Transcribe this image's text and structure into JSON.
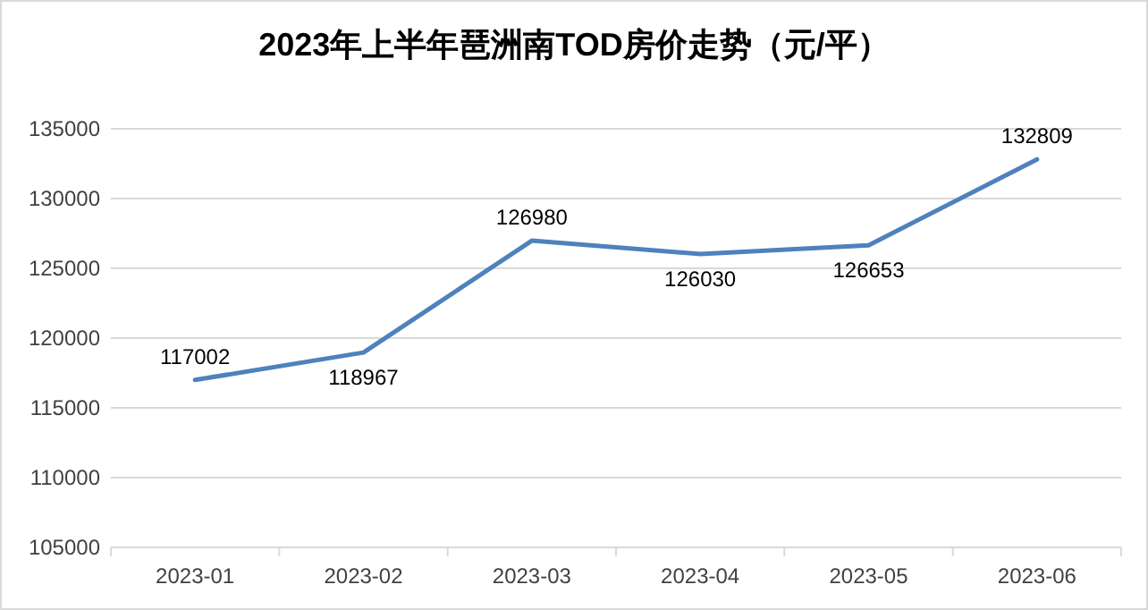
{
  "chart_data": {
    "type": "line",
    "title": "2023年上半年琶洲南TOD房价走势（元/平）",
    "categories": [
      "2023-01",
      "2023-02",
      "2023-03",
      "2023-04",
      "2023-05",
      "2023-06"
    ],
    "series": [
      {
        "color": "#4f81bd",
        "values": [
          117002,
          118967,
          126980,
          126030,
          126653,
          132809
        ]
      }
    ],
    "ylim": [
      105000,
      135000
    ],
    "yticks": [
      105000,
      110000,
      115000,
      120000,
      125000,
      130000,
      135000
    ],
    "grid": "y",
    "data_labels": true,
    "line_style": "solid"
  }
}
